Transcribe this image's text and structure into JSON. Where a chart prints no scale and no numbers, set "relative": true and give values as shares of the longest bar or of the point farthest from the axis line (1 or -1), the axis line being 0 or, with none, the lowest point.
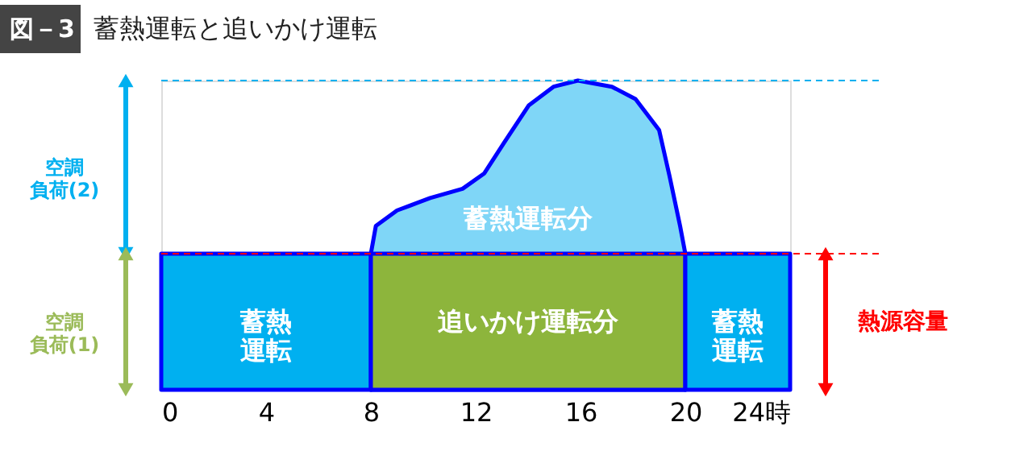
{
  "chart_data": {
    "type": "area",
    "title": "蓄熱運転と追いかけ運転",
    "relative": true,
    "series": [
      {
        "color": "#7fd6f7",
        "x": [
          8,
          8.19,
          9.0,
          10.26,
          11.5,
          12.33,
          13.09,
          14.03,
          14.97,
          15.9,
          17.2,
          18.1,
          19.0,
          19.4,
          19.8,
          20
        ],
        "values": [
          0.44,
          0.53,
          0.58,
          0.62,
          0.65,
          0.7,
          0.8,
          0.92,
          0.98,
          1,
          0.98,
          0.94,
          0.84,
          0.69,
          0.53,
          0.44
        ]
      },
      {
        "color": "#00b0f0",
        "x": [
          0,
          8
        ],
        "values": [
          0.44,
          0.44
        ]
      },
      {
        "color": "#8db53c",
        "x": [
          8,
          20
        ],
        "values": [
          0.44,
          0.44
        ]
      },
      {
        "color": "#00b0f0",
        "x": [
          20,
          24
        ],
        "values": [
          0.44,
          0.44
        ]
      }
    ],
    "xlim": [
      0,
      24
    ],
    "xticks": [
      0,
      4,
      8,
      12,
      16,
      20,
      {
        "value": 24,
        "label": "24時"
      }
    ],
    "grid": false,
    "ref_lines": [
      {
        "axis": "y",
        "value": 1,
        "color": "#00b0f0",
        "line_style": "dashed"
      },
      {
        "axis": "y",
        "value": 0.44,
        "color": "#ff0000",
        "line_style": "dashed"
      }
    ],
    "annotations": [
      "図－3",
      "空調負荷(2)",
      "空調負荷(1)",
      "熱源容量",
      "蓄熱運転",
      "追いかけ運転分",
      "蓄熱運転",
      "蓄熱運転分"
    ]
  }
}
